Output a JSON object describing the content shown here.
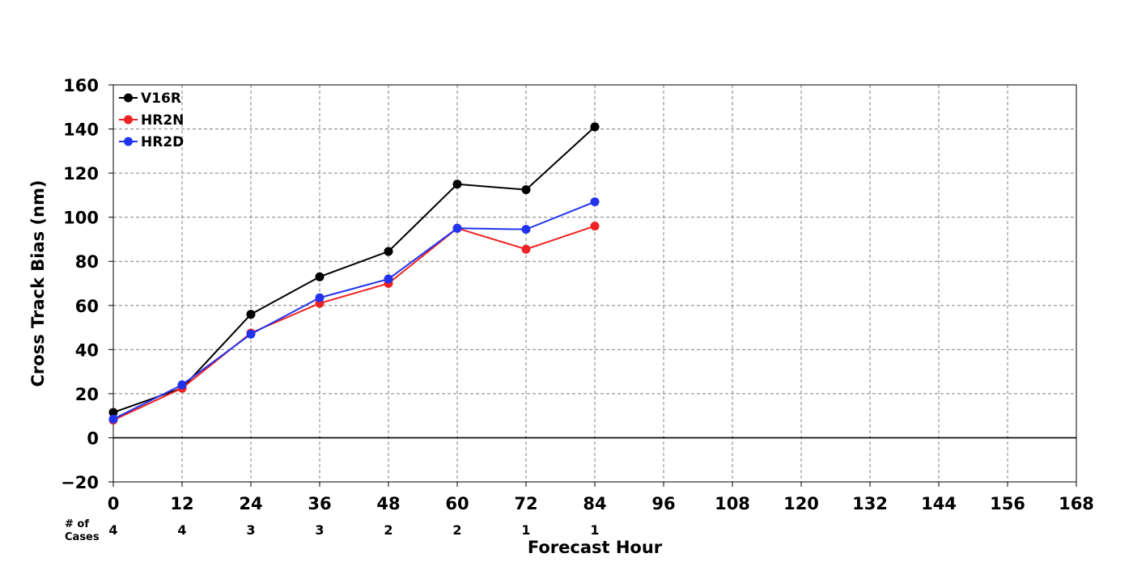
{
  "chart_data": {
    "type": "line",
    "title": "",
    "xlabel": "Forecast Hour",
    "ylabel": "Cross Track Bias (nm)",
    "xlim": [
      0,
      168
    ],
    "ylim": [
      -20,
      160
    ],
    "xticks": [
      0,
      12,
      24,
      36,
      48,
      60,
      72,
      84,
      96,
      108,
      120,
      132,
      144,
      156,
      168
    ],
    "yticks": [
      -20,
      0,
      20,
      40,
      60,
      80,
      100,
      120,
      140,
      160
    ],
    "ytick_labels": [
      "−20",
      "0",
      "20",
      "40",
      "60",
      "80",
      "100",
      "120",
      "140",
      "160"
    ],
    "grid": true,
    "legend_position": "top-left",
    "x": [
      0,
      12,
      24,
      36,
      48,
      60,
      72,
      84
    ],
    "series": [
      {
        "name": "V16R",
        "color": "#000000",
        "values": [
          11.5,
          22.5,
          56,
          73,
          84.5,
          115,
          112.5,
          141
        ]
      },
      {
        "name": "HR2N",
        "color": "#ee2222",
        "values": [
          8,
          22.5,
          47.5,
          61,
          70,
          95,
          85.5,
          96
        ]
      },
      {
        "name": "HR2D",
        "color": "#2233ee",
        "values": [
          8.5,
          24,
          47,
          63.5,
          72,
          95,
          94.5,
          107
        ]
      }
    ],
    "cases": {
      "label_line1": "# of",
      "label_line2": "Cases",
      "x": [
        0,
        12,
        24,
        36,
        48,
        60,
        72,
        84
      ],
      "values": [
        "4",
        "4",
        "3",
        "3",
        "2",
        "2",
        "1",
        "1"
      ]
    }
  }
}
